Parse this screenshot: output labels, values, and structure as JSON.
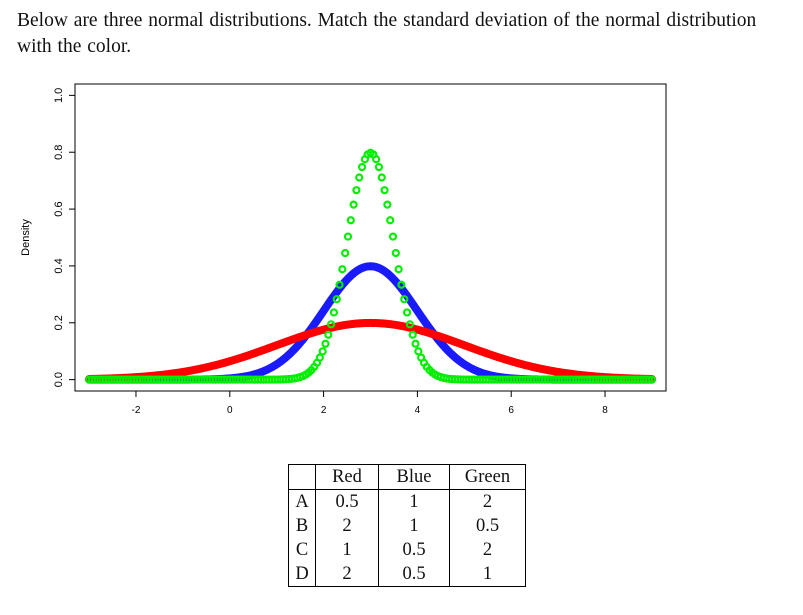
{
  "question": "Below are three normal distributions.  Match the standard deviation of the normal distribution with the color.",
  "chart_data": {
    "type": "line",
    "ylabel": "Density",
    "xlabel": "",
    "x_ticks": [
      "-2",
      "0",
      "2",
      "4",
      "6",
      "8"
    ],
    "y_ticks": [
      "0.0",
      "0.2",
      "0.4",
      "0.6",
      "0.8",
      "1.0"
    ],
    "xlim": [
      -3.3,
      9.3
    ],
    "ylim": [
      -0.04,
      1.04
    ],
    "x_range": [
      -3,
      9
    ],
    "grid": false,
    "series": [
      {
        "mean": 3,
        "sd": 1,
        "color": "#1a1aff",
        "style": "line"
      },
      {
        "mean": 3,
        "sd": 2,
        "color": "#ff0000",
        "style": "line"
      },
      {
        "mean": 3,
        "sd": 0.5,
        "color": "#00ee00",
        "style": "circles"
      }
    ]
  },
  "answer_table": {
    "headers": [
      "",
      "Red",
      "Blue",
      "Green"
    ],
    "rows": [
      [
        "A",
        "0.5",
        "1",
        "2"
      ],
      [
        "B",
        "2",
        "1",
        "0.5"
      ],
      [
        "C",
        "1",
        "0.5",
        "2"
      ],
      [
        "D",
        "2",
        "0.5",
        "1"
      ]
    ]
  }
}
